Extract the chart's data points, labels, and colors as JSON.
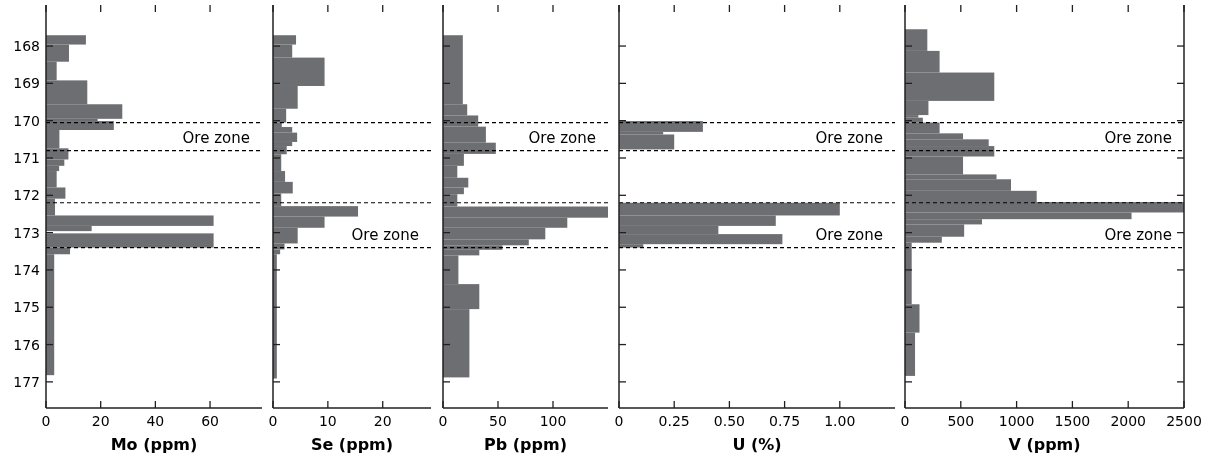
{
  "chart_data": [
    {
      "type": "histogram",
      "orientation": "horizontal",
      "xlabel": "Mo (ppm)",
      "color": "#6d6e71",
      "bins": [
        167.71,
        167.96,
        168.42,
        168.92,
        169.56,
        169.95,
        170.01,
        170.25,
        170.74,
        171.04,
        171.21,
        171.35,
        171.79,
        172.09,
        172.54,
        172.82,
        172.96,
        173.02,
        173.4,
        173.58,
        176.82
      ],
      "values": [
        14.6,
        8.4,
        3.9,
        15.1,
        27.9,
        18.9,
        24.8,
        4.9,
        8.2,
        6.7,
        4.8,
        3.9,
        7.1,
        3.3,
        61.3,
        16.7,
        null,
        61.3,
        8.8,
        3
      ],
      "xlim": [
        0,
        79
      ],
      "xticks": [
        0,
        20,
        40,
        60
      ],
      "ylim": [
        177.7,
        166.9
      ],
      "yticks": [
        168,
        169,
        170,
        171,
        172,
        173,
        174,
        175,
        176,
        177
      ],
      "ref_lines": [
        {
          "axis": "y",
          "value": 170.05,
          "line_style": "dashed"
        },
        {
          "axis": "y",
          "value": 170.8,
          "line_style": "dashed",
          "label": "Ore zone"
        },
        {
          "axis": "y",
          "value": 172.2,
          "line_style": "dashed"
        },
        {
          "axis": "y",
          "value": 173.4,
          "line_style": "dashed"
        }
      ]
    },
    {
      "type": "histogram",
      "orientation": "horizontal",
      "xlabel": "Se (ppm)",
      "color": "#6d6e71",
      "bins": [
        167.71,
        167.96,
        168.31,
        169.07,
        169.68,
        170.05,
        170.17,
        170.32,
        170.57,
        170.68,
        170.9,
        171.35,
        171.64,
        171.95,
        172.29,
        172.57,
        172.87,
        173.29,
        173.45,
        173.58,
        176.91
      ],
      "values": [
        4.2,
        3.5,
        9.4,
        4.5,
        2.4,
        1.6,
        3.5,
        4.4,
        3.5,
        2.5,
        1.5,
        2.2,
        3.6,
        1.5,
        15.5,
        9.4,
        4.5,
        2.1,
        1.3,
        0.7
      ],
      "xlim": [
        0,
        28.8
      ],
      "xticks": [
        0,
        10,
        20
      ],
      "ylim": [
        177.7,
        166.9
      ],
      "yticks": [
        168,
        169,
        170,
        171,
        172,
        173,
        174,
        175,
        176,
        177
      ],
      "tick_labels": "x",
      "ref_lines": [
        {
          "axis": "y",
          "value": 170.05,
          "line_style": "dashed"
        },
        {
          "axis": "y",
          "value": 170.8,
          "line_style": "dashed"
        },
        {
          "axis": "y",
          "value": 172.2,
          "line_style": "dashed"
        },
        {
          "axis": "y",
          "value": 173.4,
          "line_style": "dashed",
          "label": "Ore zone"
        }
      ]
    },
    {
      "type": "histogram",
      "orientation": "horizontal",
      "xlabel": "Pb (ppm)",
      "color": "#6d6e71",
      "bins": [
        167.71,
        169.56,
        169.86,
        170.16,
        170.59,
        170.89,
        171.21,
        171.53,
        171.79,
        171.97,
        172.3,
        172.6,
        172.87,
        173.18,
        173.34,
        173.46,
        173.61,
        174.38,
        175.05,
        176.88
      ],
      "values": [
        18,
        22,
        32,
        39,
        48,
        19,
        13,
        23,
        19,
        13,
        150,
        113,
        93,
        78,
        54,
        33,
        14,
        33,
        24
      ],
      "xlim": [
        0,
        150
      ],
      "xticks": [
        0,
        50,
        100
      ],
      "ylim": [
        177.7,
        166.9
      ],
      "yticks": [
        168,
        169,
        170,
        171,
        172,
        173,
        174,
        175,
        176,
        177
      ],
      "tick_labels": "x",
      "ref_lines": [
        {
          "axis": "y",
          "value": 170.05,
          "line_style": "dashed"
        },
        {
          "axis": "y",
          "value": 170.8,
          "line_style": "dashed",
          "label": "Ore zone"
        },
        {
          "axis": "y",
          "value": 172.2,
          "line_style": "dashed"
        },
        {
          "axis": "y",
          "value": 173.4,
          "line_style": "dashed"
        }
      ]
    },
    {
      "type": "histogram",
      "orientation": "horizontal",
      "xlabel": "U (%)",
      "color": "#6d6e71",
      "bins": [
        170.01,
        170.3,
        170.37,
        170.77,
        172.2,
        172.54,
        172.82,
        173.04,
        173.31,
        173.4
      ],
      "values": [
        0.38,
        0.2,
        0.25,
        0,
        1.0,
        0.71,
        0.45,
        0.74,
        0.11
      ],
      "xlim": [
        0,
        1.25
      ],
      "xticks": [
        0,
        0.25,
        {
          "value": 0.5,
          "label": "0.50"
        },
        0.75,
        {
          "value": 1,
          "label": "1.00"
        }
      ],
      "ylim": [
        177.7,
        166.9
      ],
      "yticks": [
        168,
        169,
        170,
        171,
        172,
        173,
        174,
        175,
        176,
        177
      ],
      "tick_labels": "x",
      "ref_lines": [
        {
          "axis": "y",
          "value": 170.05,
          "line_style": "dashed"
        },
        {
          "axis": "y",
          "value": 170.8,
          "line_style": "dashed",
          "label": "Ore zone"
        },
        {
          "axis": "y",
          "value": 172.2,
          "line_style": "dashed"
        },
        {
          "axis": "y",
          "value": 173.4,
          "line_style": "dashed",
          "label": "Ore zone"
        }
      ]
    },
    {
      "type": "histogram",
      "orientation": "horizontal",
      "xlabel": "V (ppm)",
      "color": "#6d6e71",
      "bins": [
        167.55,
        168.13,
        168.71,
        169.47,
        169.85,
        169.92,
        170.05,
        170.34,
        170.5,
        170.68,
        170.96,
        171.44,
        171.57,
        171.88,
        172.18,
        172.46,
        172.64,
        172.78,
        173.11,
        173.27,
        174.92,
        175.68,
        176.84
      ],
      "values": [
        200,
        310,
        800,
        210,
        120,
        160,
        310,
        520,
        750,
        800,
        520,
        820,
        950,
        1180,
        2500,
        2030,
        690,
        530,
        330,
        60,
        130,
        90
      ],
      "xlim": [
        0,
        2500
      ],
      "xticks": [
        0,
        500,
        1000,
        1500,
        2000,
        2500
      ],
      "ylim": [
        177.7,
        166.9
      ],
      "yticks": [
        168,
        169,
        170,
        171,
        172,
        173,
        174,
        175,
        176,
        177
      ],
      "tick_labels": "x",
      "ref_lines": [
        {
          "axis": "y",
          "value": 170.05,
          "line_style": "dashed"
        },
        {
          "axis": "y",
          "value": 170.8,
          "line_style": "dashed",
          "label": "Ore zone"
        },
        {
          "axis": "y",
          "value": 172.2,
          "line_style": "dashed"
        },
        {
          "axis": "y",
          "value": 173.4,
          "line_style": "dashed",
          "label": "Ore zone"
        }
      ]
    }
  ]
}
